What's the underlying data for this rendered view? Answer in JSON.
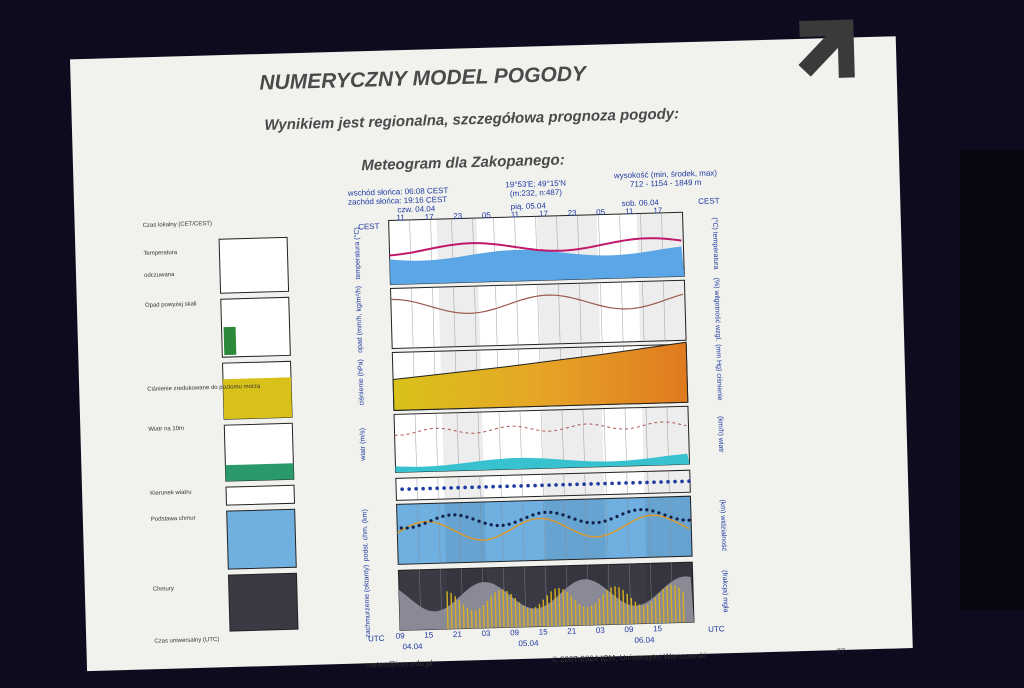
{
  "slide": {
    "title": "NUMERYCZNY MODEL POGODY",
    "subtitle": "Wynikiem jest regionalna, szczegółowa prognoza pogody:",
    "heading": "Meteogram dla Zakopanego:",
    "page_number": "77"
  },
  "meteogram": {
    "sunrise": "wschód słońca: 06:08 CEST",
    "sunset": "zachód słońca: 19:16 CEST",
    "coords": "19°53'E; 49°15'N",
    "grid": "(m:232, n:487)",
    "altitude_label": "wysokość (min, środek, max)",
    "altitude": "712 - 1154 - 1849 m",
    "timezone_top": "CEST",
    "timezone_bottom": "UTC",
    "days": [
      "czw. 04.04",
      "pią. 05.04",
      "sob. 06.04"
    ],
    "hours_top": [
      "11",
      "17",
      "23",
      "05",
      "11",
      "17",
      "23",
      "05",
      "11",
      "17"
    ],
    "hours_bottom": [
      "09",
      "15",
      "21",
      "03",
      "09",
      "15",
      "21",
      "03",
      "09",
      "15"
    ],
    "dates_bottom": [
      "04.04",
      "05.04",
      "06.04"
    ],
    "left_axis_labels": [
      "temperatura (°C)",
      "opad (mm/h, kg/m²/h)",
      "ciśnienie (hPa)",
      "wiatr (m/s)",
      "podst. chm. (km)",
      "zachmurzenie (oktanty)"
    ],
    "right_axis_labels": [
      "(°C) temperatura",
      "(%) wilgotność wzgl.",
      "(mm Hg) ciśnienie",
      "(km/h) wiatr",
      "(km) widzialność",
      "(frakcja) mgła"
    ],
    "legend_labels": [
      "Czas lokalny (CET/CEST)",
      "Temperatura",
      "odczuwana",
      "Opad powyżej skali",
      "Ciśnienie zredukowane do poziomu morza",
      "Wiatr na 10m",
      "Kierunek wiatru",
      "Podstawa chmur",
      "Chmury",
      "Czas uniwersalny (UTC)"
    ]
  },
  "footer": {
    "email": "meteo@icm.edu.pl",
    "copyright": "© 2007-2024 ICM, Uniwersytet Warszawski"
  }
}
